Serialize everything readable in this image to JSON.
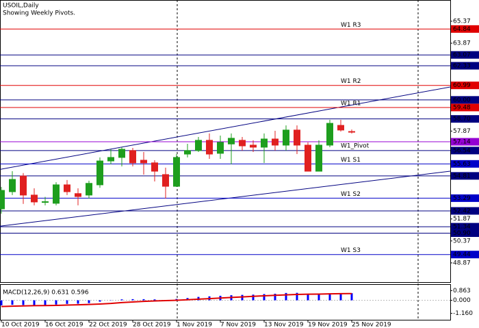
{
  "chart_data": [
    {
      "type": "candlestick",
      "title": "USOIL,Daily",
      "subtitle": "Showing Weekly Pivots.",
      "categories": [
        "10 Oct 2019",
        null,
        null,
        null,
        "16 Oct 2019",
        null,
        null,
        null,
        "22 Oct 2019",
        null,
        null,
        null,
        "28 Oct 2019",
        null,
        null,
        null,
        "1 Nov 2019",
        null,
        null,
        null,
        "7 Nov 2019",
        null,
        null,
        null,
        "13 Nov 2019",
        null,
        null,
        null,
        "19 Nov 2019",
        null,
        null,
        null,
        "25 Nov 2019"
      ],
      "open": [
        52.56,
        53.73,
        54.8,
        53.5,
        53.0,
        52.94,
        54.2,
        53.6,
        53.5,
        54.2,
        55.83,
        56.07,
        56.54,
        55.88,
        55.7,
        54.9,
        54.1,
        56.3,
        56.54,
        57.24,
        56.35,
        56.99,
        57.24,
        56.91,
        56.77,
        57.33,
        56.91,
        57.94,
        56.91,
        55.13,
        56.91,
        58.26,
        57.84
      ],
      "high": [
        54.06,
        55.13,
        55.0,
        53.96,
        53.38,
        54.38,
        54.53,
        53.96,
        54.48,
        56.07,
        56.63,
        56.77,
        56.72,
        56.44,
        55.88,
        55.37,
        56.3,
        57.0,
        57.47,
        57.71,
        57.56,
        57.71,
        57.47,
        57.24,
        57.71,
        57.89,
        58.26,
        58.26,
        57.1,
        57.24,
        58.64,
        58.64,
        57.98
      ],
      "low": [
        52.23,
        53.5,
        52.9,
        52.8,
        52.8,
        52.8,
        53.5,
        52.8,
        53.26,
        54.0,
        55.6,
        55.46,
        55.46,
        54.9,
        54.43,
        53.26,
        54.06,
        56.07,
        56.44,
        55.97,
        55.97,
        55.6,
        56.54,
        56.44,
        55.69,
        56.54,
        56.54,
        56.3,
        55.13,
        55.13,
        56.77,
        57.84,
        57.7
      ],
      "close": [
        53.82,
        54.57,
        53.5,
        53.03,
        53.05,
        54.2,
        53.73,
        53.4,
        54.3,
        55.83,
        56.07,
        56.63,
        55.7,
        55.7,
        55.13,
        54.1,
        56.07,
        56.54,
        57.24,
        56.3,
        57.1,
        57.38,
        56.86,
        56.77,
        57.33,
        56.91,
        57.94,
        56.91,
        55.13,
        56.91,
        58.4,
        57.94,
        57.8
      ],
      "up_color": "#1e9e1e",
      "down_color": "#e02020",
      "ylim": [
        47.51,
        66.82
      ],
      "yticks": [
        65.37,
        63.87,
        57.87,
        51.87,
        50.37,
        48.87
      ],
      "levels": [
        {
          "name": "W1 R3",
          "value": 64.84,
          "color": "#e00000"
        },
        {
          "value": 63.07,
          "color": "#000080"
        },
        {
          "value": 62.33,
          "color": "#000080"
        },
        {
          "name": "W1 R2",
          "value": 60.99,
          "color": "#e00000"
        },
        {
          "value": 60,
          "value_label": "60.00",
          "color": "#000080"
        },
        {
          "name": "W1 R1",
          "value": 59.48,
          "color": "#e00000"
        },
        {
          "value": 58.7,
          "value_label": "58.70",
          "color": "#000080"
        },
        {
          "name": "W1_Pivot",
          "value": 57.14,
          "color": "#9400d3"
        },
        {
          "value": 56.54,
          "color": "#000080"
        },
        {
          "name": "W1 S1",
          "value": 55.63,
          "color": "#0000c8"
        },
        {
          "value": 54.81,
          "color": "#000080"
        },
        {
          "name": "W1 S2",
          "value": 53.29,
          "color": "#0000c8"
        },
        {
          "value": 52.42,
          "color": "#000080"
        },
        {
          "value": 51.34,
          "color": "#000080"
        },
        {
          "value": 50.9,
          "value_label": "50.90",
          "color": "#000080"
        },
        {
          "name": "W1 S3",
          "value": 49.44,
          "color": "#0000c8"
        }
      ],
      "trendlines": [
        {
          "start": 55.27,
          "end": 59.65,
          "color": "#000080"
        },
        {
          "start": 51.39,
          "end": 54.31,
          "color": "#000080"
        }
      ]
    },
    {
      "type": "macd",
      "title": "MACD(12,26,9) 0.631 0.596",
      "ylim": [
        -1.73,
        1.37
      ],
      "yticks": [
        0.863,
        {
          "value": 0,
          "label": "0.000"
        },
        {
          "value": -1.16,
          "label": "-1.160"
        }
      ],
      "histogram": {
        "color": "#0000ff",
        "values": [
          -0.45,
          -0.4,
          -0.42,
          -0.45,
          -0.43,
          -0.38,
          -0.32,
          -0.3,
          -0.25,
          -0.12,
          -0.02,
          0.08,
          0.1,
          0.1,
          0.08,
          0.02,
          0.12,
          0.2,
          0.3,
          0.35,
          0.4,
          0.45,
          0.48,
          0.5,
          0.55,
          0.58,
          0.65,
          0.66,
          0.58,
          0.55,
          0.62,
          0.64,
          0.631
        ]
      },
      "signal": {
        "color": "#e00000",
        "values": [
          -0.55,
          -0.52,
          -0.5,
          -0.48,
          -0.47,
          -0.45,
          -0.42,
          -0.4,
          -0.37,
          -0.33,
          -0.28,
          -0.2,
          -0.15,
          -0.1,
          -0.06,
          -0.03,
          0.0,
          0.05,
          0.1,
          0.15,
          0.2,
          0.25,
          0.3,
          0.35,
          0.4,
          0.44,
          0.48,
          0.52,
          0.54,
          0.55,
          0.57,
          0.59,
          0.596
        ]
      }
    }
  ]
}
